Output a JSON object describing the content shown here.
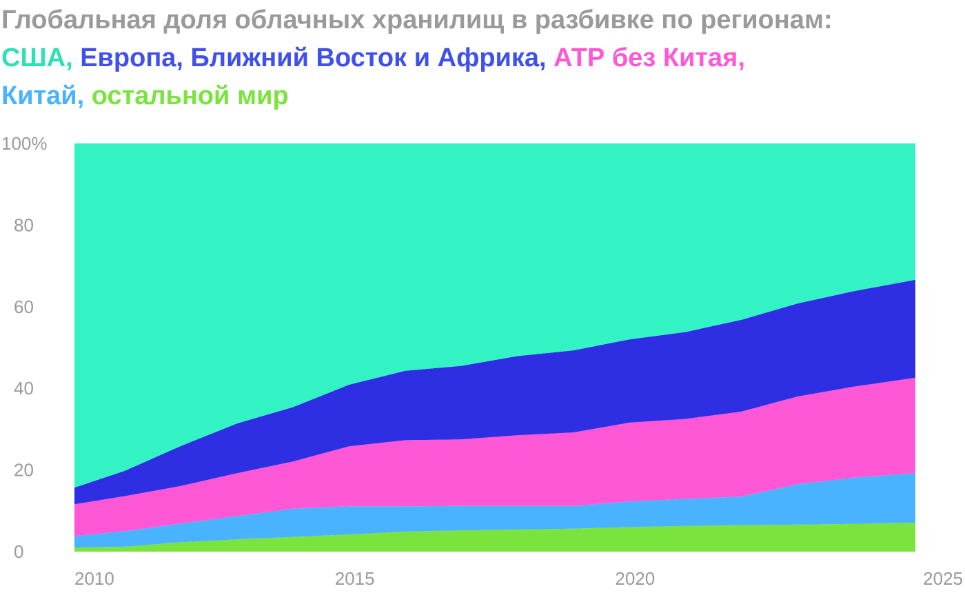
{
  "title": {
    "prefix": "Глобальная доля облачных хранилищ в разбивке по регионам:",
    "sep": ",",
    "sep_last": ","
  },
  "chart_data": {
    "type": "area",
    "stacked": true,
    "percent": true,
    "x": [
      2010,
      2010.9,
      2011.9,
      2012.9,
      2013.9,
      2014.9,
      2015.9,
      2016.9,
      2017.9,
      2018.9,
      2019.9,
      2020.9,
      2021.9,
      2022.9,
      2023.9,
      2024.9
    ],
    "series": [
      {
        "name": "остальной мир",
        "color": "#7be33e",
        "values": [
          1.0,
          1.2,
          2.3,
          3.0,
          3.6,
          4.2,
          4.9,
          5.2,
          5.4,
          5.6,
          6.0,
          6.3,
          6.5,
          6.6,
          6.8,
          7.1
        ]
      },
      {
        "name": "Китай",
        "color": "#4ab3ff",
        "values": [
          2.8,
          3.8,
          4.6,
          5.7,
          6.9,
          6.9,
          6.2,
          6.0,
          5.8,
          5.6,
          6.3,
          6.6,
          7.0,
          9.9,
          11.3,
          12.1
        ]
      },
      {
        "name": "АТР без Китая",
        "color": "#ff58d6",
        "values": [
          7.8,
          8.6,
          9.2,
          10.5,
          11.6,
          14.7,
          16.2,
          16.3,
          17.3,
          18.0,
          19.3,
          19.6,
          20.8,
          21.5,
          22.3,
          23.4
        ]
      },
      {
        "name": "Европа, Ближний Восток и Африка",
        "color": "#2e2fe3",
        "values": [
          4.1,
          6.2,
          9.8,
          12.2,
          13.3,
          15.1,
          17.0,
          18.0,
          19.4,
          20.1,
          20.4,
          21.3,
          22.5,
          22.8,
          23.4,
          24.0
        ]
      },
      {
        "name": "США",
        "color": "#33f3c5",
        "values": [
          84.3,
          80.2,
          74.1,
          68.6,
          64.6,
          59.1,
          55.7,
          54.5,
          52.1,
          50.7,
          48.0,
          46.2,
          43.2,
          39.2,
          36.2,
          33.4
        ]
      }
    ],
    "xticks": [
      "2010",
      "2015",
      "2020",
      "2025"
    ],
    "xlim": [
      2010,
      2025
    ],
    "yticks": [
      "0",
      "20",
      "40",
      "60",
      "80",
      "100%"
    ],
    "ylim": [
      0,
      100
    ],
    "title_colors": {
      "США": "#2ee0b5",
      "Европа, Ближний Восток и Африка": "#4050ee",
      "АТР без Китая": "#ff58d6",
      "Китай": "#4ab3ff",
      "остальной мир": "#7be33e"
    }
  }
}
